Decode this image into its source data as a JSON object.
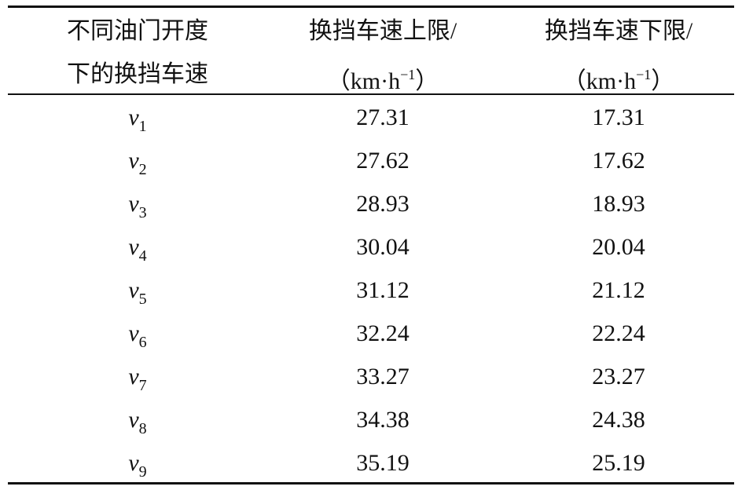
{
  "table": {
    "header": [
      {
        "lines": [
          "不同油门开度",
          "下的换挡车速"
        ]
      },
      {
        "lines": [
          "换挡车速上限/"
        ],
        "unit": {
          "text": "（km·h",
          "sup": "−1",
          "close": "）"
        }
      },
      {
        "lines": [
          "换挡车速下限/"
        ],
        "unit": {
          "text": "（km·h",
          "sup": "−1",
          "close": "）"
        }
      }
    ],
    "rows": [
      [
        {
          "var": "v",
          "sub": "1"
        },
        "27.31",
        "17.31"
      ],
      [
        {
          "var": "v",
          "sub": "2"
        },
        "27.62",
        "17.62"
      ],
      [
        {
          "var": "v",
          "sub": "3"
        },
        "28.93",
        "18.93"
      ],
      [
        {
          "var": "v",
          "sub": "4"
        },
        "30.04",
        "20.04"
      ],
      [
        {
          "var": "v",
          "sub": "5"
        },
        "31.12",
        "21.12"
      ],
      [
        {
          "var": "v",
          "sub": "6"
        },
        "32.24",
        "22.24"
      ],
      [
        {
          "var": "v",
          "sub": "7"
        },
        "33.27",
        "23.27"
      ],
      [
        {
          "var": "v",
          "sub": "8"
        },
        "34.38",
        "24.38"
      ],
      [
        {
          "var": "v",
          "sub": "9"
        },
        "35.19",
        "25.19"
      ]
    ]
  }
}
